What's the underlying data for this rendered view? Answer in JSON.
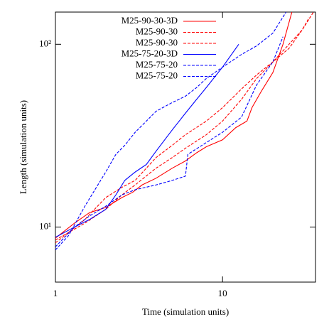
{
  "chart_data": {
    "type": "line",
    "log_x": true,
    "log_y": true,
    "x_label": "Time (simulation units)",
    "y_label": "Length (simulation units)",
    "xlim": [
      1,
      36
    ],
    "ylim": [
      5,
      150
    ],
    "xticks": [
      1,
      10
    ],
    "yticks": [
      {
        "value": 10,
        "label": "10¹"
      },
      {
        "value": 100,
        "label": "10²"
      }
    ],
    "legend": "top-left",
    "series": [
      {
        "name": "M25-90-30-3D",
        "color": "#ff0000",
        "dashed": false,
        "x": [
          1,
          1.3,
          1.6,
          2,
          2.5,
          2.9,
          3.3,
          4,
          5,
          6,
          7,
          8,
          10,
          12,
          14,
          15,
          17,
          20,
          23,
          26
        ],
        "values": [
          8.7,
          10.5,
          12,
          12.8,
          14.5,
          15.5,
          17,
          18.5,
          21,
          23,
          25.5,
          27.5,
          30,
          35,
          38,
          45,
          55,
          70,
          100,
          150
        ]
      },
      {
        "name": "M25-90-30",
        "color": "#ff0000",
        "dashed": true,
        "x": [
          1,
          1.5,
          2,
          2.5,
          3,
          4,
          5,
          6,
          8,
          10,
          13,
          16,
          20,
          25,
          30,
          35
        ],
        "values": [
          8.2,
          11,
          14.5,
          16.5,
          18,
          24,
          28,
          32,
          38,
          45,
          57,
          68,
          80,
          100,
          120,
          150
        ]
      },
      {
        "name": "M25-90-30",
        "color": "#ff0000",
        "dashed": true,
        "x": [
          1,
          1.5,
          2,
          2.5,
          3,
          4,
          5,
          6,
          8,
          10,
          13,
          16,
          20,
          25,
          30,
          33
        ],
        "values": [
          8.5,
          10.5,
          12.5,
          15,
          17,
          21,
          24,
          27,
          32,
          38,
          50,
          65,
          80,
          95,
          120,
          140
        ]
      },
      {
        "name": "M25-75-20-3D",
        "color": "#0000ff",
        "dashed": false,
        "x": [
          1,
          1.3,
          1.6,
          2,
          2.3,
          2.6,
          3,
          3.5,
          4,
          5,
          6,
          7,
          8,
          10,
          12.5
        ],
        "values": [
          8.8,
          10,
          11,
          12.5,
          15,
          18,
          20,
          22,
          26,
          34,
          42,
          50,
          58,
          75,
          100
        ]
      },
      {
        "name": "M25-75-20",
        "color": "#0000ff",
        "dashed": true,
        "x": [
          1,
          1.2,
          1.5,
          2,
          2.3,
          2.6,
          3,
          3.5,
          4,
          5,
          6,
          7,
          8,
          10,
          13,
          16,
          20,
          24
        ],
        "values": [
          7.5,
          9,
          13,
          20,
          25,
          28,
          33,
          38,
          43,
          48,
          52,
          58,
          65,
          75,
          88,
          98,
          115,
          150
        ]
      },
      {
        "name": "M25-75-20",
        "color": "#0000ff",
        "dashed": true,
        "x": [
          1,
          1.3,
          1.6,
          2,
          2.5,
          3,
          4,
          5,
          6,
          6.2,
          8,
          10,
          13,
          16,
          20,
          23
        ],
        "values": [
          7.8,
          10,
          11.5,
          13,
          15,
          16,
          17,
          18,
          19,
          25,
          29,
          33,
          40,
          60,
          80,
          110
        ]
      }
    ]
  }
}
